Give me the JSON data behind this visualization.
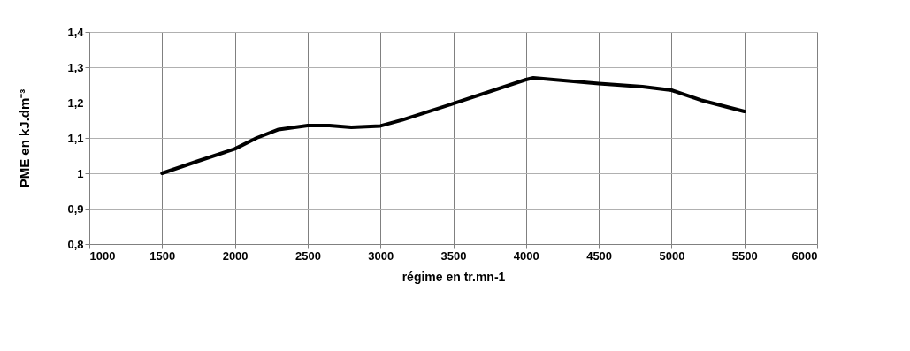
{
  "chart_data": {
    "type": "line",
    "xlabel": "régime en tr.mn-1",
    "ylabel": "PME  en  kJ.dm⁻³",
    "x": [
      1500,
      1750,
      2000,
      2150,
      2300,
      2500,
      2650,
      2800,
      3000,
      3150,
      3500,
      4000,
      4050,
      4500,
      4800,
      5000,
      5200,
      5500
    ],
    "series": [
      {
        "color": "#000000",
        "values": [
          1.0,
          1.035,
          1.069,
          1.1,
          1.124,
          1.135,
          1.135,
          1.13,
          1.134,
          1.151,
          1.197,
          1.265,
          1.27,
          1.254,
          1.245,
          1.235,
          1.207,
          1.175
        ]
      }
    ],
    "xlim": [
      1000,
      6000
    ],
    "xticks": [
      1000,
      1500,
      2000,
      2500,
      3000,
      3500,
      4000,
      4500,
      5000,
      5500,
      6000
    ],
    "ylim": [
      0.8,
      1.4
    ],
    "yticks": [
      {
        "value": 0.8,
        "label": "0,8"
      },
      {
        "value": 0.9,
        "label": "0,9"
      },
      {
        "value": 1,
        "label": "1"
      },
      {
        "value": 1.1,
        "label": "1,1"
      },
      {
        "value": 1.2,
        "label": "1,2"
      },
      {
        "value": 1.3,
        "label": "1,3"
      },
      {
        "value": 1.4,
        "label": "1,4"
      }
    ],
    "grid": true,
    "marker": "none",
    "line_style": "solid",
    "legend": false
  }
}
